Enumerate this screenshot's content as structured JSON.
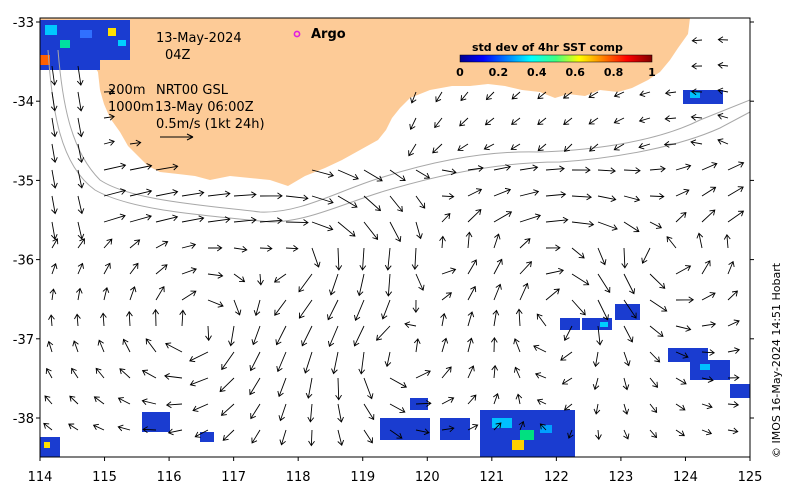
{
  "map": {
    "date": "13-May-2024",
    "hour": "04Z",
    "argo_label": "Argo",
    "depth_line1": "200m",
    "depth_line2": "1000m",
    "product": "NRT00 GSL",
    "current_time": "13-May 06:00Z",
    "scale_label": "0.5m/s (1kt 24h)",
    "credit": "© IMOS 16-May-2024 14:51 Hobart",
    "land_color": "#fdcb97",
    "argo_color": "#e020e0",
    "x_axis_ticks": [
      "114",
      "115",
      "116",
      "117",
      "118",
      "119",
      "120",
      "121",
      "122",
      "123",
      "124",
      "125"
    ],
    "y_axis_ticks": [
      "-33",
      "-34",
      "-35",
      "-36",
      "-37",
      "-38"
    ],
    "colorbar": {
      "title": "std dev of 4hr SST comp",
      "ticks": [
        "0",
        "0.2",
        "0.4",
        "0.6",
        "0.8",
        "1"
      ],
      "colormap": "jet"
    }
  }
}
